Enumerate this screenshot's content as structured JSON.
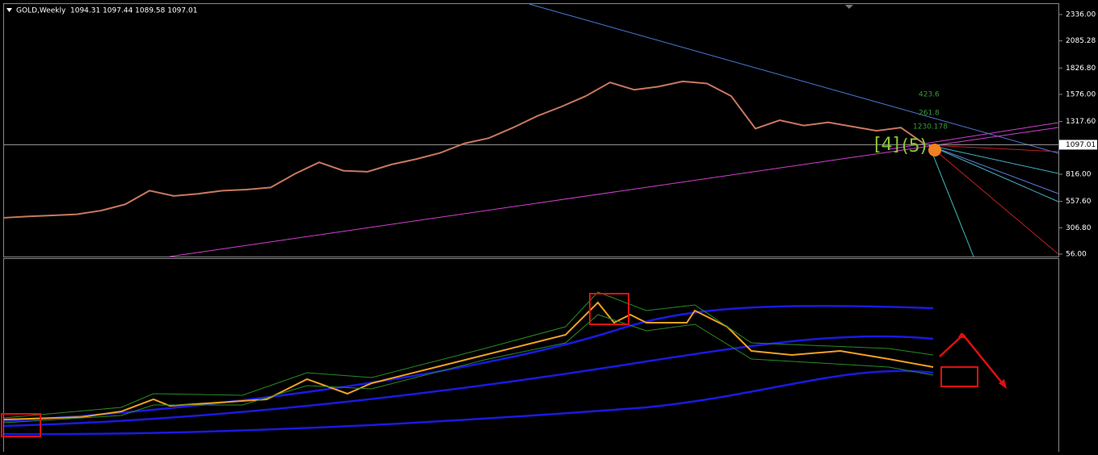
{
  "chart_data": {
    "type": "line",
    "title": "GOLD,Weekly",
    "subtitle": "1094.31 1097.44 1089.58 1097.01",
    "color": "#c8785e",
    "values": [
      402,
      415,
      425,
      435,
      470,
      530,
      660,
      610,
      630,
      660,
      670,
      690,
      820,
      930,
      850,
      840,
      910,
      960,
      1020,
      1110,
      1160,
      1260,
      1370,
      1460,
      1560,
      1690,
      1620,
      1650,
      1700,
      1680,
      1560,
      1250,
      1330,
      1280,
      1310,
      1270,
      1230,
      1260,
      1100
    ],
    "ylim": [
      33,
      2436
    ],
    "yticks": [
      {
        "value": 2336,
        "label": "2336.00"
      },
      {
        "value": 2085.28,
        "label": "2085.28"
      },
      {
        "value": 1826.8,
        "label": "1826.80"
      },
      {
        "value": 1576,
        "label": "1576.00"
      },
      {
        "value": 1317.6,
        "label": "1317.60"
      },
      {
        "value": 816,
        "label": "816.00"
      },
      {
        "value": 557.6,
        "label": "557.60"
      },
      {
        "value": 306.8,
        "label": "306.80"
      },
      {
        "value": 56,
        "label": "56.00"
      }
    ],
    "last_price": {
      "value": 1097.01,
      "label": "1097.01"
    },
    "annotations": [
      "423.6",
      "261.8",
      "1230.178",
      "[4]",
      "(5)"
    ]
  }
}
